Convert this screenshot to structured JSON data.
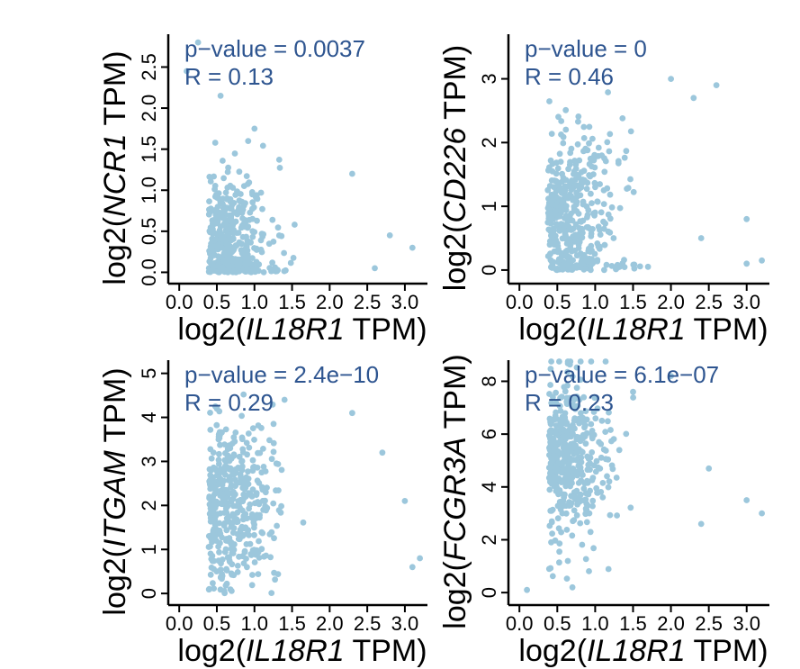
{
  "chart_data": [
    {
      "type": "scatter",
      "xlabel_prefix": "log2(",
      "xlabel_gene": "IL18R1",
      "xlabel_suffix": " TPM)",
      "ylabel_prefix": "log2(",
      "ylabel_gene": "NCR1",
      "ylabel_suffix": " TPM)",
      "xticks": [
        "0.0",
        "0.5",
        "1.0",
        "1.5",
        "2.0",
        "2.5",
        "3.0"
      ],
      "yticks": [
        "0.0",
        "0.5",
        "1.0",
        "1.5",
        "2.0",
        "2.5"
      ],
      "xlim": [
        -0.05,
        3.3
      ],
      "ylim": [
        -0.05,
        2.9
      ],
      "stat_p": "p−value = 0.0037",
      "stat_r": "R = 0.13",
      "seed": 11,
      "corr": 0.13,
      "xmean": 0.55,
      "xsd": 0.45,
      "ymean": 0.35,
      "ysd": 0.45,
      "highlights": [
        [
          0.25,
          2.8
        ],
        [
          0.1,
          2.45
        ],
        [
          0.55,
          2.15
        ],
        [
          1.0,
          1.75
        ],
        [
          2.3,
          1.2
        ],
        [
          2.8,
          0.45
        ],
        [
          3.1,
          0.3
        ],
        [
          2.6,
          0.05
        ]
      ]
    },
    {
      "type": "scatter",
      "xlabel_prefix": "log2(",
      "xlabel_gene": "IL18R1",
      "xlabel_suffix": " TPM)",
      "ylabel_prefix": "log2(",
      "ylabel_gene": "CD226",
      "ylabel_suffix": " TPM)",
      "xticks": [
        "0.0",
        "0.5",
        "1.0",
        "1.5",
        "2.0",
        "2.5",
        "3.0"
      ],
      "yticks": [
        "0",
        "1",
        "2",
        "3"
      ],
      "xlim": [
        -0.05,
        3.3
      ],
      "ylim": [
        -0.1,
        3.7
      ],
      "stat_p": "p−value = 0",
      "stat_r": "R = 0.46",
      "seed": 23,
      "corr": 0.46,
      "xmean": 0.55,
      "xsd": 0.5,
      "ymean": 0.75,
      "ysd": 0.7,
      "highlights": [
        [
          2.0,
          3.0
        ],
        [
          2.6,
          2.9
        ],
        [
          2.3,
          2.7
        ],
        [
          1.0,
          1.3
        ],
        [
          3.0,
          0.8
        ],
        [
          3.2,
          0.15
        ],
        [
          3.0,
          0.1
        ],
        [
          2.4,
          0.5
        ]
      ]
    },
    {
      "type": "scatter",
      "xlabel_prefix": "log2(",
      "xlabel_gene": "IL18R1",
      "xlabel_suffix": " TPM)",
      "ylabel_prefix": "log2(",
      "ylabel_gene": "ITGAM",
      "ylabel_suffix": " TPM)",
      "xticks": [
        "0.0",
        "0.5",
        "1.0",
        "1.5",
        "2.0",
        "2.5",
        "3.0"
      ],
      "yticks": [
        "0",
        "1",
        "2",
        "3",
        "4",
        "5"
      ],
      "xlim": [
        -0.05,
        3.3
      ],
      "ylim": [
        -0.1,
        5.3
      ],
      "stat_p": "p−value = 2.4e−10",
      "stat_r": "R = 0.29",
      "seed": 37,
      "corr": 0.29,
      "xmean": 0.55,
      "xsd": 0.45,
      "ymean": 2.1,
      "ysd": 0.95,
      "highlights": [
        [
          0.5,
          4.2
        ],
        [
          1.4,
          4.4
        ],
        [
          2.3,
          4.1
        ],
        [
          2.7,
          3.2
        ],
        [
          3.0,
          2.1
        ],
        [
          3.2,
          0.8
        ],
        [
          0.9,
          0.6
        ],
        [
          0.4,
          0.1
        ],
        [
          3.1,
          0.6
        ]
      ]
    },
    {
      "type": "scatter",
      "xlabel_prefix": "log2(",
      "xlabel_gene": "IL18R1",
      "xlabel_suffix": " TPM)",
      "ylabel_prefix": "log2(",
      "ylabel_gene": "FCGR3A",
      "ylabel_suffix": " TPM)",
      "xticks": [
        "0.0",
        "0.5",
        "1.0",
        "1.5",
        "2.0",
        "2.5",
        "3.0"
      ],
      "yticks": [
        "0",
        "2",
        "4",
        "6",
        "8"
      ],
      "xlim": [
        -0.05,
        3.3
      ],
      "ylim": [
        -0.2,
        8.8
      ],
      "stat_p": "p−value = 6.1e−07",
      "stat_r": "R = 0.23",
      "seed": 53,
      "corr": 0.23,
      "xmean": 0.55,
      "xsd": 0.45,
      "ymean": 5.0,
      "ysd": 1.6,
      "highlights": [
        [
          2.0,
          8.2
        ],
        [
          1.5,
          7.6
        ],
        [
          2.5,
          4.7
        ],
        [
          3.0,
          3.5
        ],
        [
          3.2,
          3.0
        ],
        [
          2.4,
          2.6
        ],
        [
          0.7,
          0.2
        ],
        [
          0.1,
          0.1
        ]
      ]
    }
  ]
}
